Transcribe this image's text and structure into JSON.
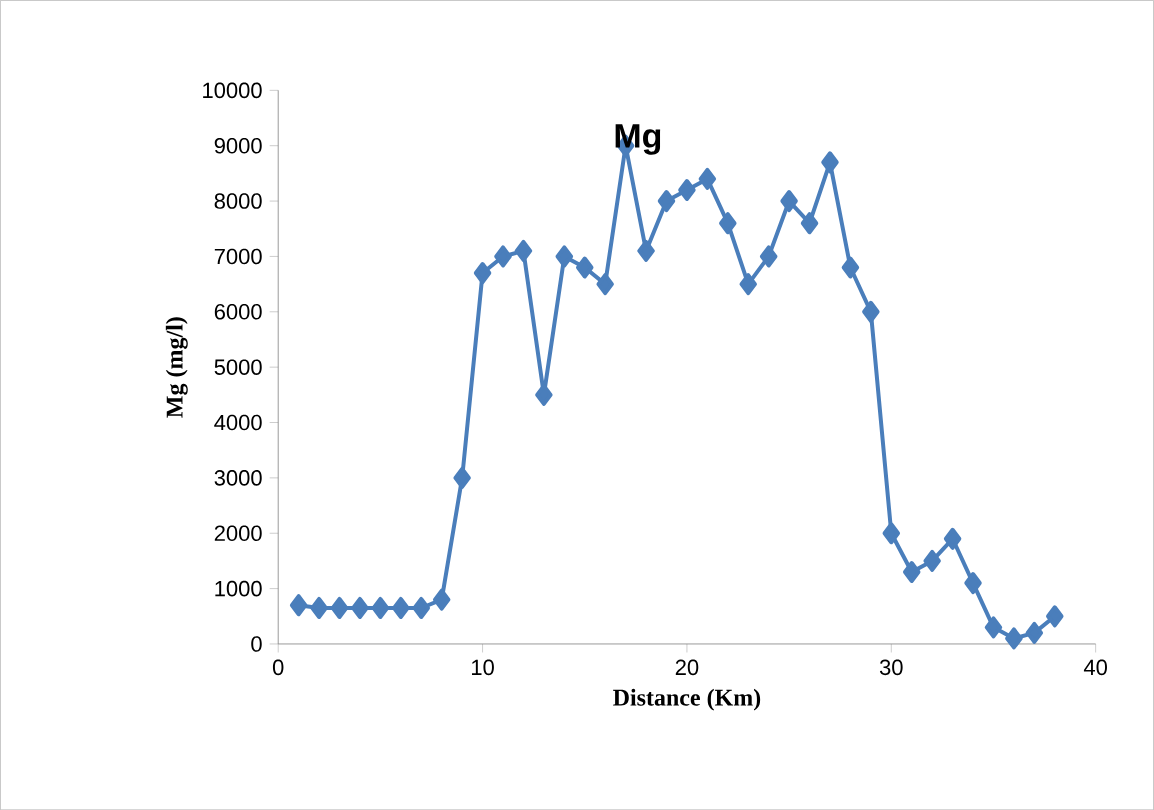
{
  "chart_data": {
    "type": "line",
    "title": "Mg",
    "xlabel": "Distance (Km)",
    "ylabel": "Mg (mg/l)",
    "x": [
      1,
      2,
      3,
      4,
      5,
      6,
      7,
      8,
      9,
      10,
      11,
      12,
      13,
      14,
      15,
      16,
      17,
      18,
      19,
      20,
      21,
      22,
      23,
      24,
      25,
      26,
      27,
      28,
      29,
      30,
      31,
      32,
      33,
      34,
      35,
      36,
      37,
      38
    ],
    "series": [
      {
        "color": "#4a7ebb",
        "values": [
          700,
          650,
          650,
          650,
          650,
          650,
          650,
          800,
          3000,
          6700,
          7000,
          7100,
          4500,
          7000,
          6800,
          6500,
          9000,
          7100,
          8000,
          8200,
          8400,
          7600,
          6500,
          7000,
          8000,
          7600,
          8700,
          6800,
          6000,
          2000,
          1300,
          1500,
          1900,
          1100,
          300,
          100,
          200,
          500
        ]
      }
    ],
    "xlim": [
      0,
      40
    ],
    "xticks": [
      0,
      10,
      20,
      30,
      40
    ],
    "ylim": [
      0,
      10000
    ],
    "yticks": [
      0,
      1000,
      2000,
      3000,
      4000,
      5000,
      6000,
      7000,
      8000,
      9000,
      10000
    ],
    "marker": "diamond",
    "line_style": "solid"
  }
}
